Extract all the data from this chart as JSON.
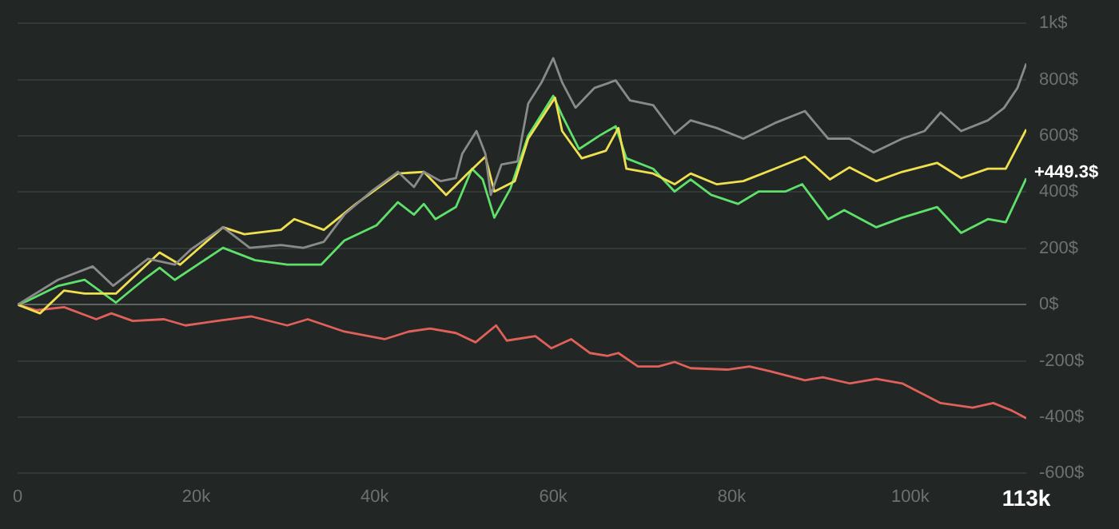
{
  "chart_data": {
    "type": "line",
    "xlim": [
      0,
      113000
    ],
    "ylim": [
      -600,
      1000
    ],
    "xticks": [
      0,
      {
        "value": 20000,
        "label": "20k"
      },
      {
        "value": 40000,
        "label": "40k"
      },
      {
        "value": 60000,
        "label": "60k"
      },
      {
        "value": 80000,
        "label": "80k"
      },
      {
        "value": 100000,
        "label": "100k"
      },
      {
        "value": 113000,
        "label": "113k"
      }
    ],
    "yticks": [
      {
        "value": -600,
        "label": "-600$"
      },
      {
        "value": -400,
        "label": "-400$"
      },
      {
        "value": -200,
        "label": "-200$"
      },
      {
        "value": 0,
        "label": "0$"
      },
      {
        "value": 200,
        "label": "200$"
      },
      {
        "value": 400,
        "label": "400$"
      },
      {
        "value": 600,
        "label": "600$"
      },
      {
        "value": 800,
        "label": "800$"
      },
      {
        "value": 1000,
        "label": "1k$"
      }
    ],
    "grid": "y",
    "legend": false,
    "marker": "none",
    "line_style": "solid",
    "annotations": [
      {
        "text": "+449.3$",
        "x": 113000,
        "y": 449.3
      }
    ],
    "series": [
      {
        "color": "#8a8a8a",
        "x": [
          0,
          4500,
          8400,
          10700,
          14600,
          17600,
          19400,
          23000,
          26000,
          29500,
          32000,
          34300,
          36600,
          39600,
          42600,
          44400,
          45500,
          47400,
          49100,
          49800,
          51400,
          52400,
          53000,
          54200,
          56000,
          57200,
          58700,
          60000,
          61000,
          62500,
          64600,
          67000,
          68600,
          71200,
          73600,
          75400,
          78300,
          81300,
          84800,
          88200,
          90800,
          93200,
          95900,
          99100,
          101600,
          103400,
          105700,
          108700,
          110500,
          112000,
          113000
        ],
        "values": [
          0,
          88,
          136,
          67,
          163,
          142,
          196,
          275,
          202,
          212,
          202,
          223,
          320,
          402,
          472,
          418,
          472,
          439,
          450,
          536,
          617,
          536,
          390,
          498,
          509,
          715,
          790,
          876,
          790,
          700,
          770,
          797,
          726,
          709,
          607,
          655,
          628,
          590,
          645,
          688,
          590,
          590,
          541,
          590,
          617,
          683,
          617,
          655,
          699,
          770,
          857
        ]
      },
      {
        "color": "#f0e050",
        "x": [
          0,
          2500,
          5200,
          7500,
          11000,
          15900,
          18200,
          23000,
          25400,
          29500,
          31000,
          34300,
          37900,
          42600,
          45500,
          48000,
          50400,
          52400,
          53400,
          55700,
          57200,
          60200,
          61000,
          63200,
          65900,
          67300,
          68200,
          71200,
          73600,
          75400,
          78300,
          81300,
          84800,
          88200,
          91000,
          93200,
          96200,
          99100,
          103000,
          105700,
          108700,
          110700,
          113000
        ],
        "values": [
          0,
          -31,
          50,
          39,
          39,
          185,
          142,
          275,
          250,
          266,
          304,
          266,
          358,
          466,
          472,
          390,
          466,
          526,
          402,
          439,
          590,
          736,
          617,
          520,
          547,
          628,
          483,
          466,
          428,
          466,
          428,
          439,
          483,
          526,
          445,
          488,
          439,
          472,
          504,
          450,
          483,
          483,
          623
        ]
      },
      {
        "color": "#5ee06a",
        "x": [
          0,
          1000,
          4500,
          7500,
          11000,
          14100,
          15900,
          17600,
          23000,
          26600,
          30200,
          34000,
          36600,
          40200,
          42600,
          44400,
          45500,
          46800,
          49100,
          50900,
          52100,
          53400,
          55200,
          57200,
          60000,
          61000,
          62900,
          65200,
          67000,
          68200,
          71200,
          73600,
          75400,
          77700,
          80700,
          83000,
          86000,
          87900,
          90800,
          92600,
          96200,
          99100,
          103000,
          105700,
          108700,
          110700,
          113000
        ],
        "values": [
          0,
          12,
          66,
          88,
          7,
          88,
          131,
          88,
          202,
          158,
          142,
          142,
          228,
          282,
          364,
          320,
          358,
          304,
          347,
          483,
          445,
          309,
          412,
          601,
          742,
          672,
          553,
          601,
          634,
          520,
          483,
          402,
          445,
          390,
          358,
          402,
          402,
          428,
          304,
          336,
          275,
          309,
          347,
          255,
          304,
          293,
          449
        ]
      },
      {
        "color": "#e0605a",
        "x": [
          0,
          2100,
          5200,
          8800,
          10500,
          12900,
          16400,
          18800,
          22300,
          26200,
          30200,
          32500,
          36600,
          41100,
          43800,
          46200,
          49100,
          51300,
          53600,
          54800,
          58000,
          59800,
          62000,
          64100,
          66100,
          67300,
          69500,
          71800,
          73600,
          75400,
          79500,
          82000,
          84300,
          88200,
          90200,
          93200,
          96200,
          99100,
          103400,
          107000,
          109300,
          111400,
          113000
        ],
        "values": [
          0,
          -20,
          -9,
          -52,
          -31,
          -58,
          -52,
          -74,
          -58,
          -42,
          -74,
          -52,
          -96,
          -123,
          -96,
          -85,
          -101,
          -134,
          -74,
          -128,
          -112,
          -155,
          -123,
          -172,
          -182,
          -172,
          -220,
          -220,
          -204,
          -226,
          -231,
          -220,
          -237,
          -269,
          -258,
          -280,
          -264,
          -280,
          -350,
          -366,
          -350,
          -377,
          -404
        ]
      }
    ]
  }
}
